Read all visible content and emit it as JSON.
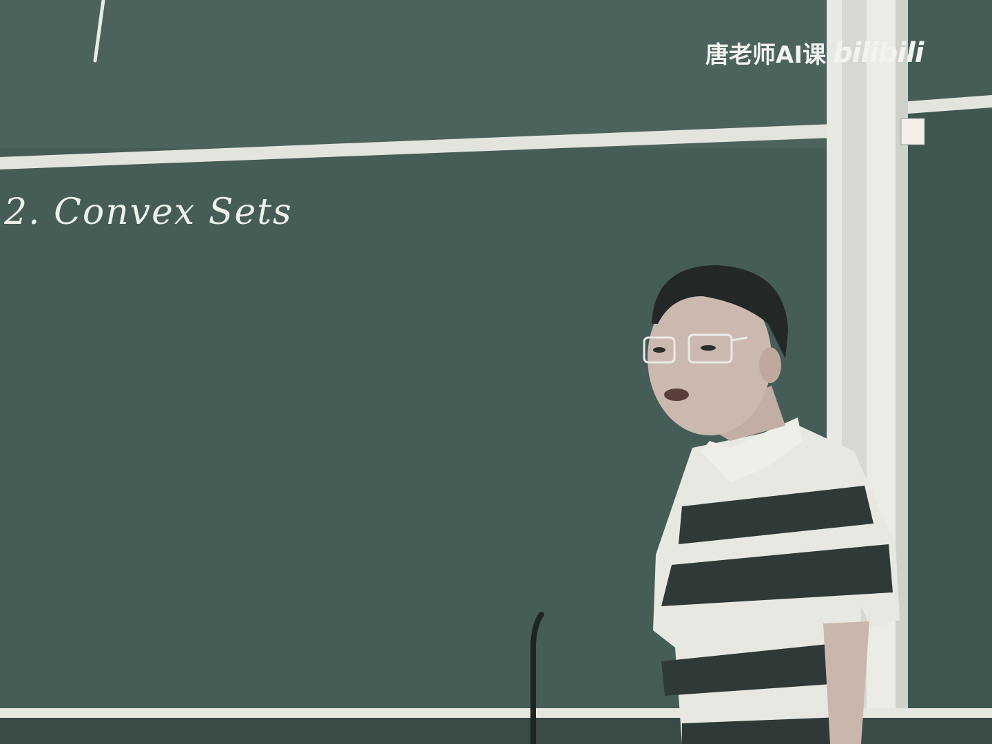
{
  "blackboard": {
    "title": "2. Convex Sets",
    "colors": {
      "board": "#465c57",
      "board_dark": "#3f5550",
      "frame": "#e6e6e0",
      "chalk": "#eef0ea"
    }
  },
  "watermark": {
    "channel": "唐老师AI课",
    "logo": "bilibili"
  },
  "scene": {
    "subject": "lecturer",
    "props": [
      "microphone-stand",
      "eyeglasses",
      "striped-polo-shirt"
    ],
    "colors": {
      "shirt_dark": "#2f3a38",
      "shirt_light": "#e8e8e2",
      "skin": "#c9b7ae",
      "hair": "#232726"
    }
  }
}
